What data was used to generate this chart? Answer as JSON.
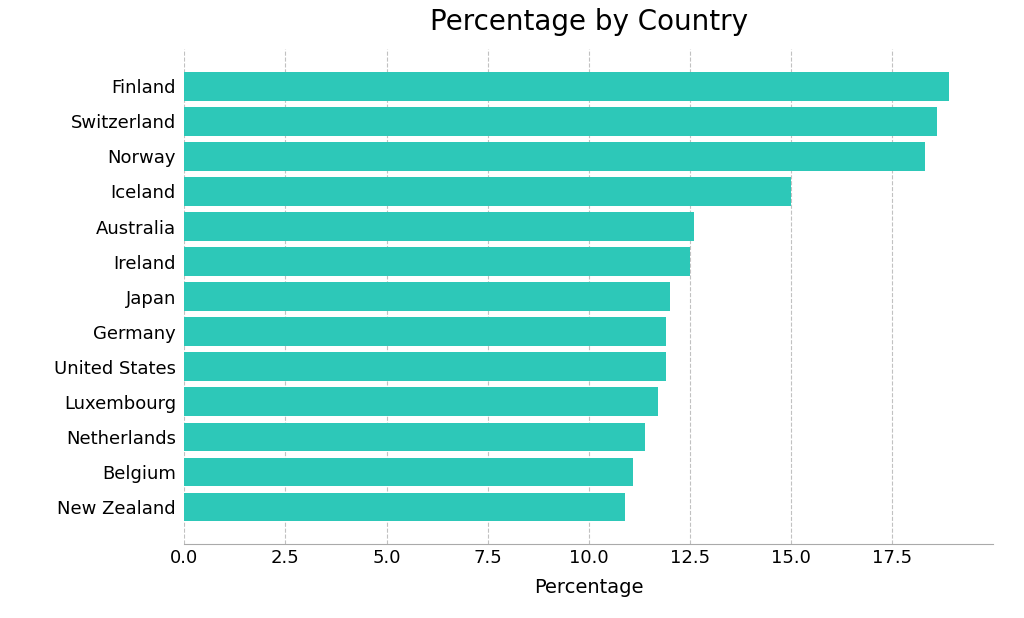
{
  "title": "Percentage by Country",
  "xlabel": "Percentage",
  "countries": [
    "New Zealand",
    "Belgium",
    "Netherlands",
    "Luxembourg",
    "United States",
    "Germany",
    "Japan",
    "Ireland",
    "Australia",
    "Iceland",
    "Norway",
    "Switzerland",
    "Finland"
  ],
  "values": [
    10.9,
    11.1,
    11.4,
    11.7,
    11.9,
    11.9,
    12.0,
    12.5,
    12.6,
    15.0,
    18.3,
    18.6,
    18.9
  ],
  "bar_color": "#2dc8b8",
  "background_color": "#ffffff",
  "xlim": [
    0,
    20
  ],
  "xticks": [
    0.0,
    2.5,
    5.0,
    7.5,
    10.0,
    12.5,
    15.0,
    17.5
  ],
  "title_fontsize": 20,
  "label_fontsize": 14,
  "tick_fontsize": 13,
  "bar_height": 0.82
}
